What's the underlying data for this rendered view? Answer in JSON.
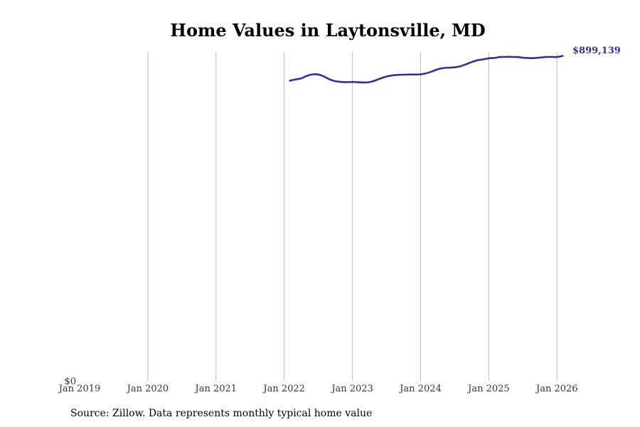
{
  "chart_data": {
    "type": "line",
    "title": "Home Values in Laytonsville, MD",
    "xlabel": "",
    "ylabel": "",
    "x_tick_labels": [
      "Jan 2019",
      "Jan 2020",
      "Jan 2021",
      "Jan 2022",
      "Jan 2023",
      "Jan 2024",
      "Jan 2025",
      "Jan 2026"
    ],
    "y_tick_labels": [
      "$0"
    ],
    "xlim": [
      "2019-01",
      "2026-04"
    ],
    "ylim": [
      0,
      910000
    ],
    "grid": "vertical",
    "line_color": "#35308a",
    "end_label": "$899,139",
    "series": [
      {
        "name": "Typical home value",
        "x": [
          "2022-02",
          "2022-03",
          "2022-04",
          "2022-05",
          "2022-06",
          "2022-07",
          "2022-08",
          "2022-09",
          "2022-10",
          "2022-11",
          "2022-12",
          "2023-01",
          "2023-02",
          "2023-03",
          "2023-04",
          "2023-05",
          "2023-06",
          "2023-07",
          "2023-08",
          "2023-09",
          "2023-10",
          "2023-11",
          "2023-12",
          "2024-01",
          "2024-02",
          "2024-03",
          "2024-04",
          "2024-05",
          "2024-06",
          "2024-07",
          "2024-08",
          "2024-09",
          "2024-10",
          "2024-11",
          "2024-12",
          "2025-01",
          "2025-02",
          "2025-03",
          "2025-04",
          "2025-05",
          "2025-06",
          "2025-07",
          "2025-08",
          "2025-09",
          "2025-10",
          "2025-11",
          "2025-12",
          "2026-01",
          "2026-02"
        ],
        "values": [
          830700,
          834000,
          837000,
          844000,
          848000,
          847500,
          842000,
          834000,
          829000,
          827000,
          826500,
          827000,
          826000,
          825500,
          826500,
          831000,
          837000,
          842000,
          845000,
          846500,
          847000,
          847500,
          847500,
          848000,
          851000,
          856000,
          862000,
          865500,
          866500,
          867500,
          870500,
          876000,
          882000,
          887000,
          889500,
          892500,
          893500,
          896000,
          896500,
          896500,
          896000,
          894000,
          893000,
          893000,
          894500,
          896000,
          896500,
          896000,
          899139
        ]
      }
    ]
  },
  "footer": {
    "source": "Source: Zillow. Data represents monthly typical home value"
  }
}
